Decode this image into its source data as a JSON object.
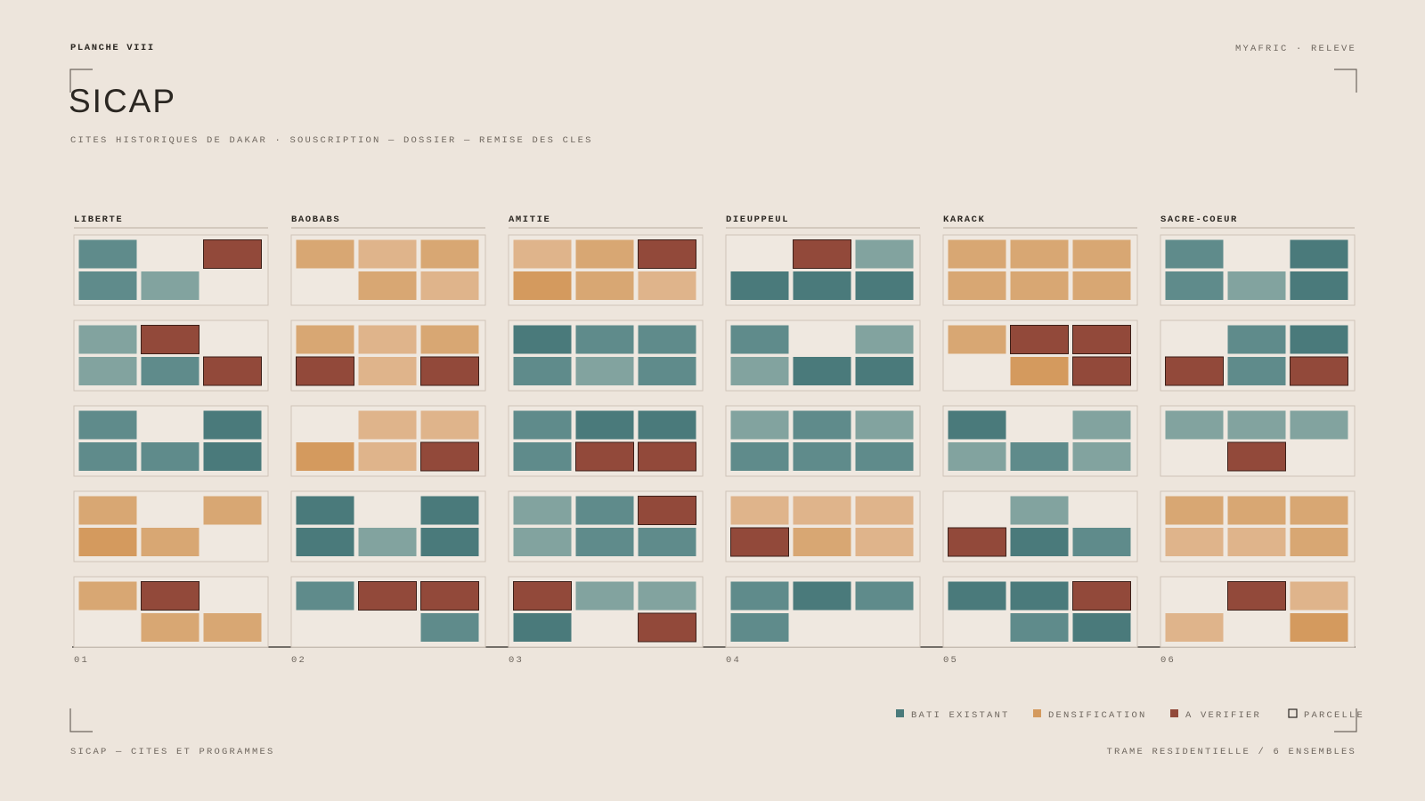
{
  "header": {
    "plate": "PLANCHE VIII",
    "source": "MYAFRIC · RELEVE",
    "title": "SICAP",
    "subtitle": "CITES HISTORIQUES DE DAKAR · SOUSCRIPTION — DOSSIER — REMISE DES CLES"
  },
  "ensembles": [
    {
      "name": "LIBERTE",
      "number": "01"
    },
    {
      "name": "BAOBABS",
      "number": "02"
    },
    {
      "name": "AMITIE",
      "number": "03"
    },
    {
      "name": "DIEUPPEUL",
      "number": "04"
    },
    {
      "name": "KARACK",
      "number": "05"
    },
    {
      "name": "SACRE-COEUR",
      "number": "06"
    }
  ],
  "legend": [
    "BATI EXISTANT",
    "DENSIFICATION",
    "A VERIFIER",
    "PARCELLE"
  ],
  "footer": {
    "left": "SICAP — CITES ET PROGRAMMES",
    "right": "TRAME RESIDENTIELLE / 6 ENSEMBLES"
  }
}
